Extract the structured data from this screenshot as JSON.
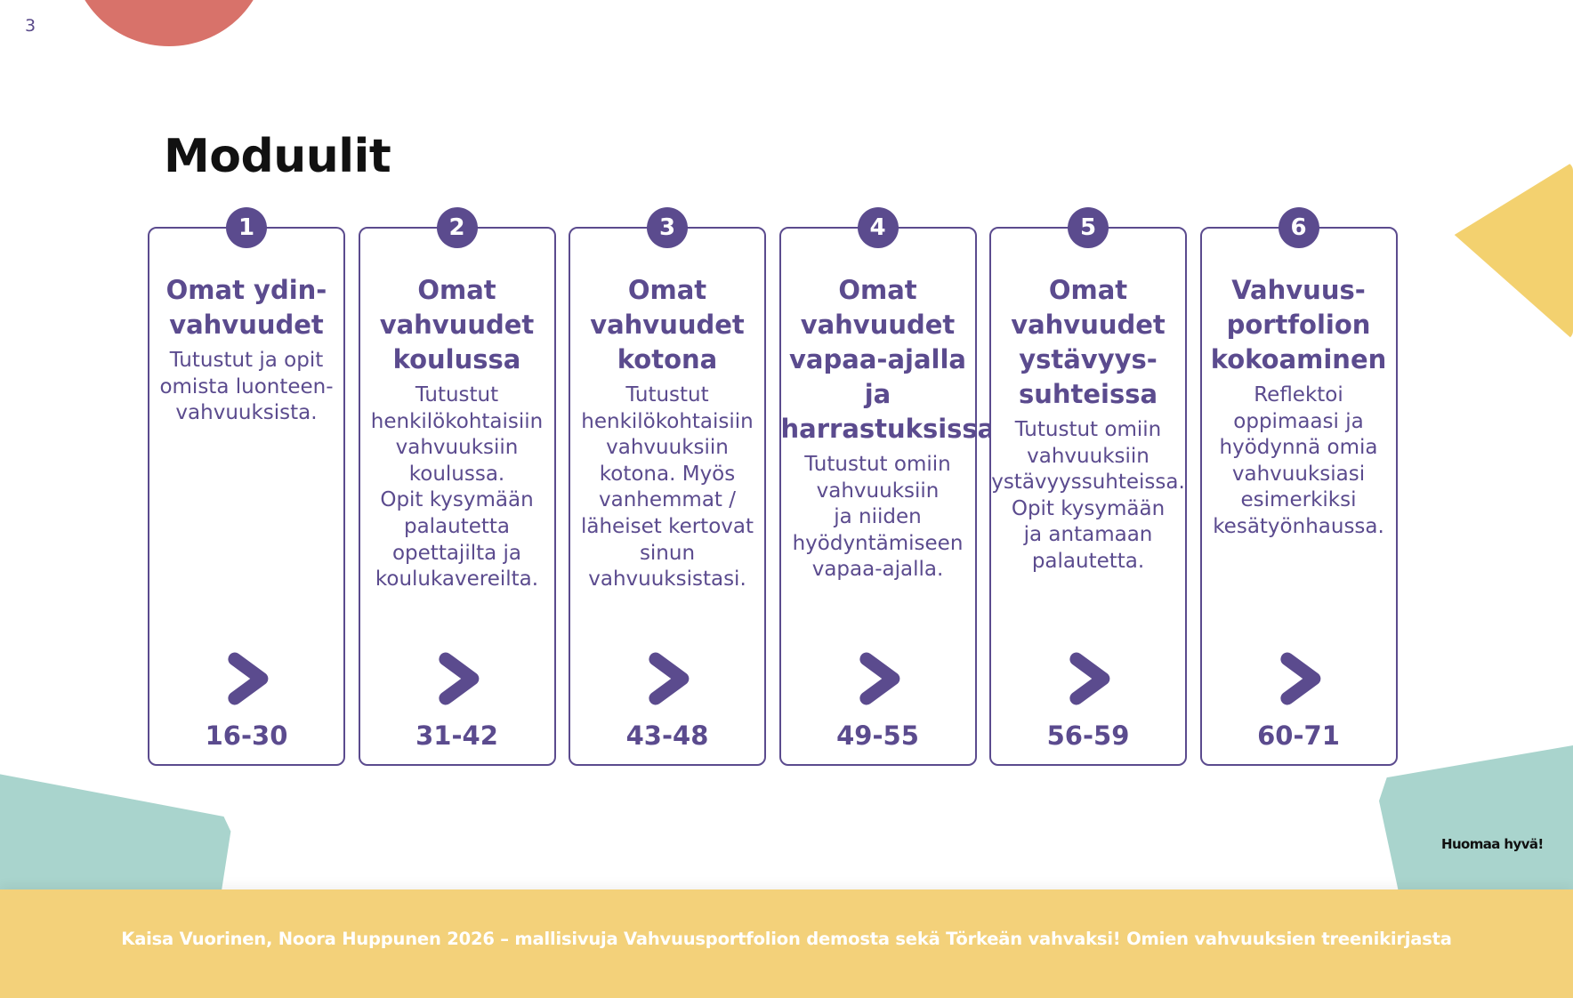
{
  "page_number": "3",
  "title": "Moduulit",
  "modules": [
    {
      "number": "1",
      "title": "Omat ydin-\nvahvuudet",
      "description": "Tutustut ja opit\nomista luonteen-\nvahvuuksista.",
      "pages": "16-30"
    },
    {
      "number": "2",
      "title": "Omat\nvahvuudet\nkoulussa",
      "description": "Tutustut\nhenkilökohtaisiin\nvahvuuksiin\nkoulussa.\nOpit kysymään\npalautetta\nopettajilta ja\nkoulukavereilta.",
      "pages": "31-42"
    },
    {
      "number": "3",
      "title": "Omat\nvahvuudet\nkotona",
      "description": "Tutustut\nhenkilökohtaisiin\nvahvuuksiin\nkotona. Myös\nvanhemmat /\nläheiset kertovat\nsinun\nvahvuuksistasi.",
      "pages": "43-48"
    },
    {
      "number": "4",
      "title": "Omat\nvahvuudet\nvapaa-ajalla\nja\nharrastuksissa",
      "description": "Tutustut omiin\nvahvuuksiin\nja niiden\nhyödyntämiseen\nvapaa-ajalla.",
      "pages": "49-55"
    },
    {
      "number": "5",
      "title": "Omat\nvahvuudet\nystävyys-\nsuhteissa",
      "description": "Tutustut omiin\nvahvuuksiin\nystävyyssuhteissa.\nOpit kysymään\nja antamaan\npalautetta.",
      "pages": "56-59"
    },
    {
      "number": "6",
      "title": "Vahvuus-\nportfolion\nkokoaminen",
      "description": "Reflektoi\noppimaasi ja\nhyödynnä omia\nvahvuuksiasi\nesimerkiksi\nkesätyönhaussa.",
      "pages": "60-71"
    }
  ],
  "brand": "Huomaa hyvä!",
  "footer_text": "Kaisa Vuorinen, Noora Huppunen 2026 – mallisivuja Vahvuusportfolion demosta sekä Törkeän vahvaksi! Omien vahvuuksien treenikirjasta",
  "colors": {
    "accent": "#5b4b8e",
    "coral": "#d8726a",
    "yellow": "#f3d17a",
    "teal": "#a9d4cd"
  },
  "icons": {
    "module_arrow": "chevron-right-icon"
  }
}
